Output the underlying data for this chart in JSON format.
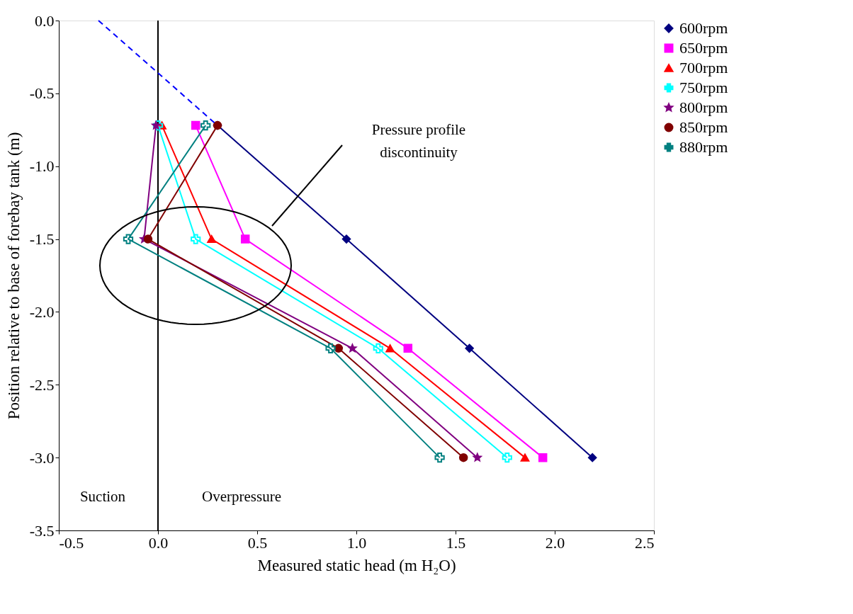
{
  "chart_data": {
    "type": "line",
    "xlabel": "Measured static head (m H₂O)",
    "ylabel": "Position relative to base of forebay tank (m)",
    "xlim": [
      -0.5,
      2.5
    ],
    "ylim": [
      -3.5,
      0
    ],
    "xticks": [
      {
        "value": -0.5,
        "label": "-0.5"
      },
      {
        "value": 0,
        "label": "0.0"
      },
      {
        "value": 0.5,
        "label": "0.5"
      },
      {
        "value": 1,
        "label": "1.0"
      },
      {
        "value": 1.5,
        "label": "1.5"
      },
      {
        "value": 2,
        "label": "2.0"
      },
      {
        "value": 2.5,
        "label": "2.5"
      }
    ],
    "yticks": [
      {
        "value": 0,
        "label": "0.0"
      },
      {
        "value": -0.5,
        "label": "-0.5"
      },
      {
        "value": -1,
        "label": "-1.0"
      },
      {
        "value": -1.5,
        "label": "-1.5"
      },
      {
        "value": -2,
        "label": "-2.0"
      },
      {
        "value": -2.5,
        "label": "-2.5"
      },
      {
        "value": -3,
        "label": "-3.0"
      },
      {
        "value": -3.5,
        "label": "-3.5"
      }
    ],
    "grid": false,
    "legend": "right",
    "series": [
      {
        "name": "600rpm",
        "color": "#000080",
        "marker": "diamond",
        "x": [
          0.3,
          0.95,
          1.57,
          2.19
        ],
        "values": [
          -0.72,
          -1.5,
          -2.25,
          -3.0
        ]
      },
      {
        "name": "650rpm",
        "color": "#ff00ff",
        "marker": "square",
        "x": [
          0.19,
          0.44,
          1.26,
          1.94
        ],
        "values": [
          -0.72,
          -1.5,
          -2.25,
          -3.0
        ]
      },
      {
        "name": "700rpm",
        "color": "#ff0000",
        "marker": "triangle",
        "x": [
          0.02,
          0.27,
          1.17,
          1.85
        ],
        "values": [
          -0.72,
          -1.5,
          -2.25,
          -3.0
        ]
      },
      {
        "name": "750rpm",
        "color": "#00ffff",
        "marker": "cross",
        "x": [
          0.0,
          0.19,
          1.11,
          1.76
        ],
        "values": [
          -0.72,
          -1.5,
          -2.25,
          -3.0
        ]
      },
      {
        "name": "800rpm",
        "color": "#800080",
        "marker": "star",
        "x": [
          -0.01,
          -0.07,
          0.98,
          1.61
        ],
        "values": [
          -0.72,
          -1.5,
          -2.25,
          -3.0
        ]
      },
      {
        "name": "850rpm",
        "color": "#800000",
        "marker": "circle",
        "x": [
          0.3,
          -0.05,
          0.91,
          1.54
        ],
        "values": [
          -0.72,
          -1.5,
          -2.25,
          -3.0
        ]
      },
      {
        "name": "880rpm",
        "color": "#008080",
        "marker": "cross",
        "x": [
          0.24,
          -0.15,
          0.87,
          1.42
        ],
        "values": [
          -0.72,
          -1.5,
          -2.25,
          -3.0
        ]
      },
      {
        "color": "#0000ff",
        "line_style": "dashed",
        "marker": "none",
        "x": [
          -0.3,
          0.3
        ],
        "values": [
          0,
          -0.72
        ]
      }
    ],
    "ref_lines": [
      {
        "axis": "x",
        "value": 0,
        "color": "#000000"
      }
    ],
    "annotations": [
      "Pressure profile discontinuity",
      "Suction",
      "Overpressure"
    ]
  }
}
